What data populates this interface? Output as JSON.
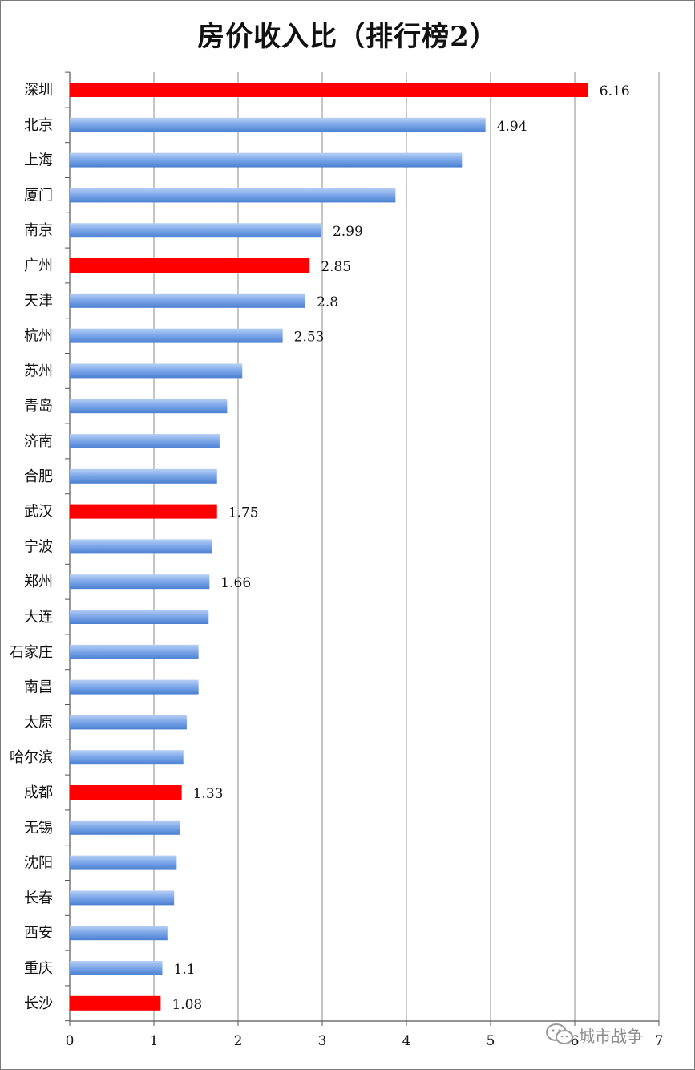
{
  "chart_data": {
    "type": "bar",
    "orientation": "horizontal",
    "title": "房价收入比（排行榜2）",
    "categories": [
      "深圳",
      "北京",
      "上海",
      "厦门",
      "南京",
      "广州",
      "天津",
      "杭州",
      "苏州",
      "青岛",
      "济南",
      "合肥",
      "武汉",
      "宁波",
      "郑州",
      "大连",
      "石家庄",
      "南昌",
      "太原",
      "哈尔滨",
      "成都",
      "无锡",
      "沈阳",
      "长春",
      "西安",
      "重庆",
      "长沙"
    ],
    "values": [
      6.16,
      4.94,
      4.66,
      3.87,
      2.99,
      2.85,
      2.8,
      2.53,
      2.05,
      1.87,
      1.78,
      1.75,
      1.75,
      1.69,
      1.66,
      1.65,
      1.53,
      1.53,
      1.39,
      1.35,
      1.33,
      1.31,
      1.27,
      1.24,
      1.16,
      1.1,
      1.08
    ],
    "data_labels": [
      "6.16",
      "4.94",
      "",
      "",
      "2.99",
      "2.85",
      "2.8",
      "2.53",
      "",
      "",
      "",
      "",
      "1.75",
      "",
      "1.66",
      "",
      "",
      "",
      "",
      "",
      "1.33",
      "",
      "",
      "",
      "",
      "1.1",
      "1.08"
    ],
    "highlighted": [
      "深圳",
      "广州",
      "武汉",
      "成都",
      "长沙"
    ],
    "colors": {
      "default": "#5b8fd9",
      "default_light": "#a9c6f2",
      "highlight": "#ff0000",
      "grid": "#8c8c8c"
    },
    "xlim": [
      0,
      7
    ],
    "x_ticks": [
      "0",
      "1",
      "2",
      "3",
      "4",
      "5",
      "6",
      "7"
    ],
    "grid": true,
    "legend": "none",
    "xlabel": "",
    "ylabel": ""
  },
  "watermark": {
    "icon": "wechat-icon",
    "text": "城市战争"
  }
}
